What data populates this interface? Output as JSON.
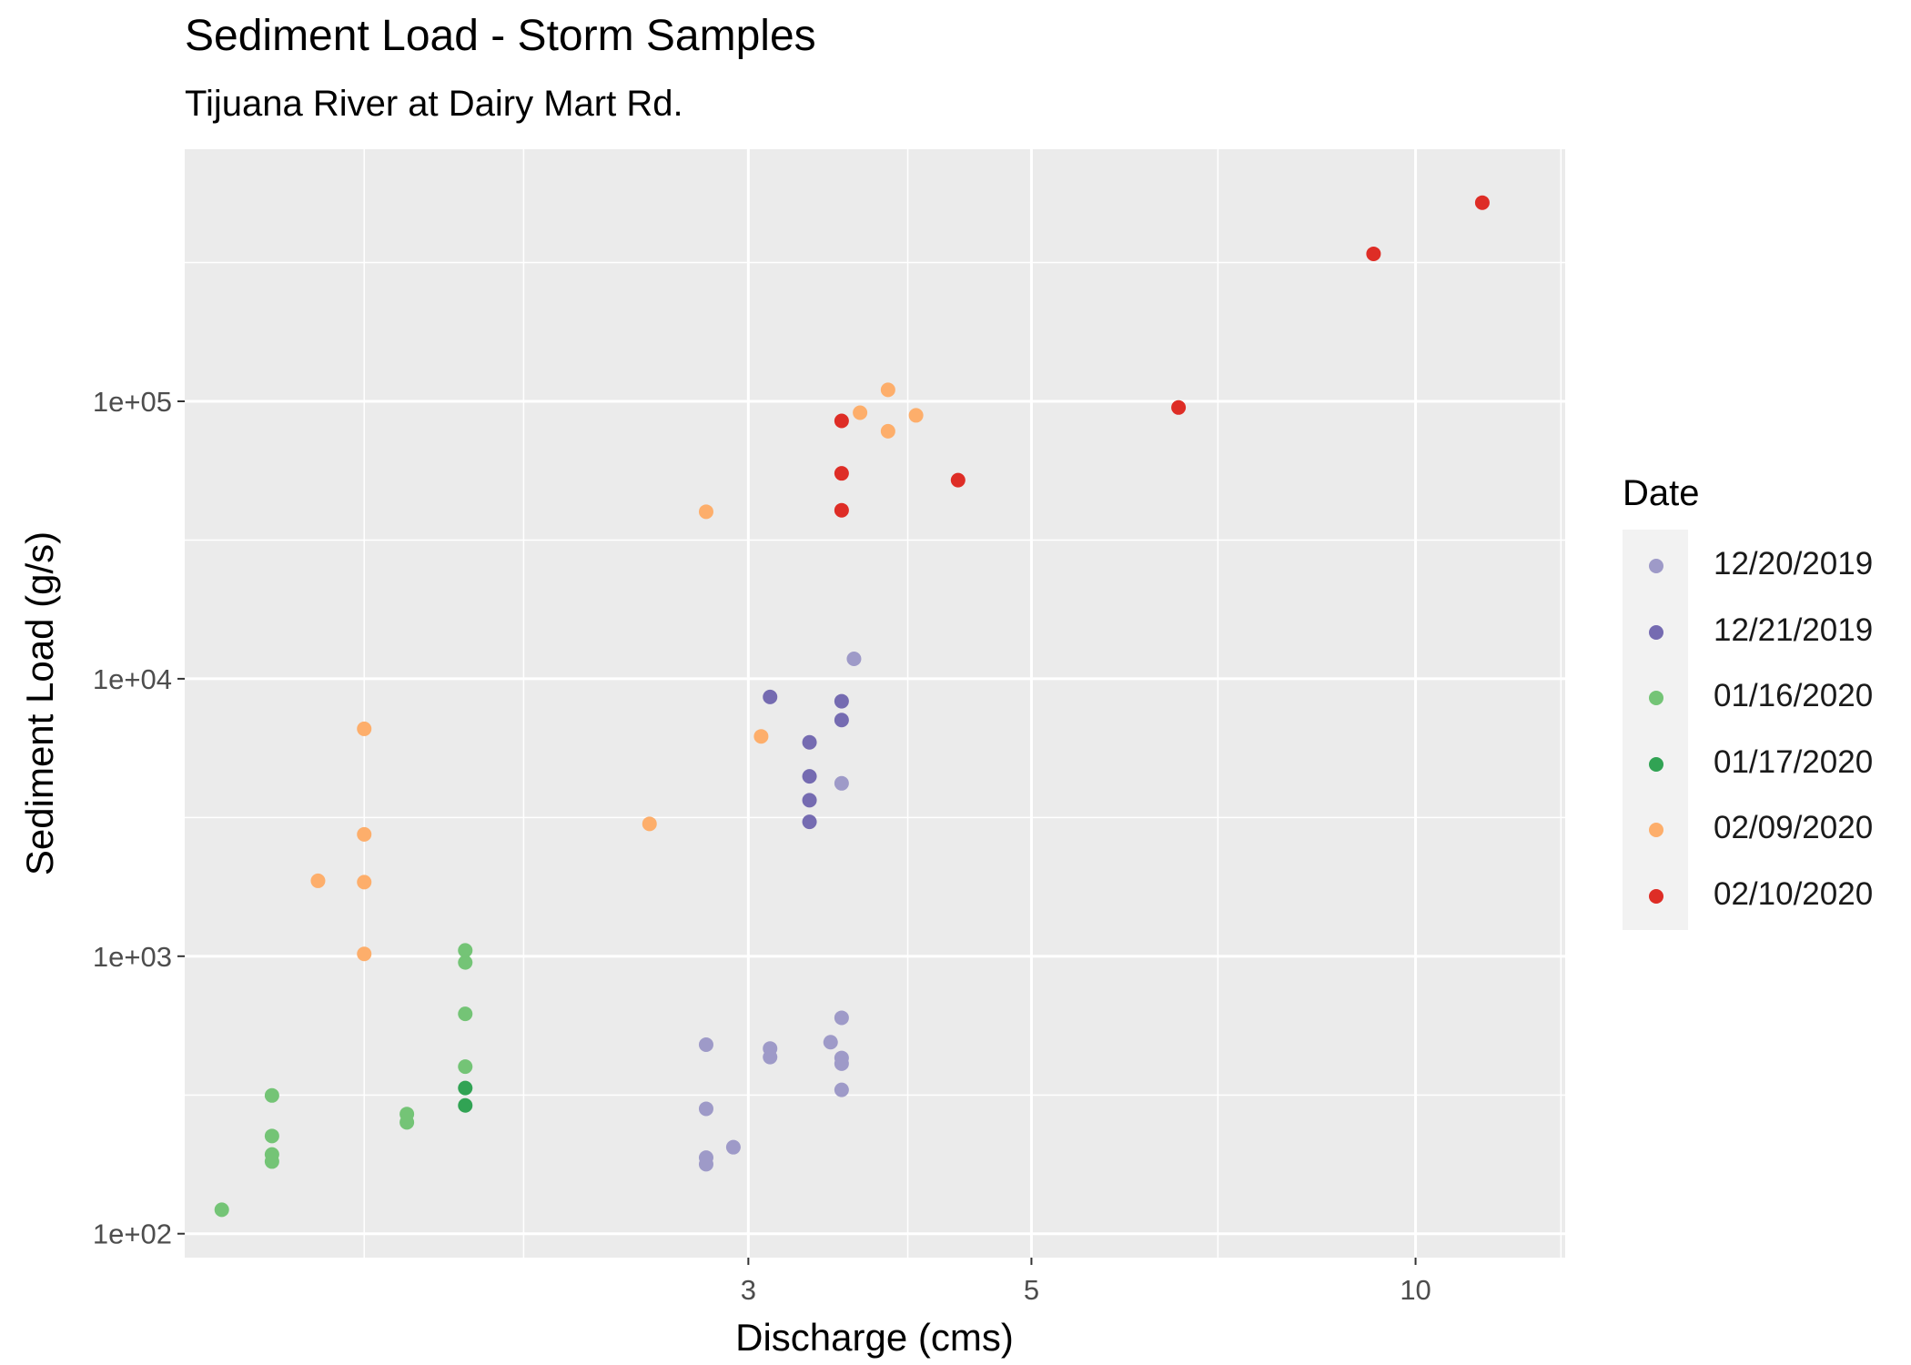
{
  "chart": {
    "title": "Sediment Load - Storm Samples",
    "subtitle": "Tijuana River at Dairy Mart Rd."
  },
  "legend": {
    "title": "Date",
    "items": [
      {
        "label": "12/20/2019",
        "color": "#9e9ac8"
      },
      {
        "label": "12/21/2019",
        "color": "#756bb1"
      },
      {
        "label": "01/16/2020",
        "color": "#74c476"
      },
      {
        "label": "01/17/2020",
        "color": "#31a354"
      },
      {
        "label": "02/09/2020",
        "color": "#fdae6b"
      },
      {
        "label": "02/10/2020",
        "color": "#de2d26"
      }
    ]
  },
  "chart_data": {
    "type": "scatter",
    "title": "Sediment Load - Storm Samples",
    "subtitle": "Tijuana River at Dairy Mart Rd.",
    "xlabel": "Discharge (cms)",
    "ylabel": "Sediment Load (g/s)",
    "x_scale": "log10",
    "y_scale": "log10",
    "xlim": [
      1.085,
      13.1
    ],
    "ylim": [
      82,
      810000
    ],
    "x_ticks": [
      {
        "value": 3,
        "label": "3"
      },
      {
        "value": 5,
        "label": "5"
      },
      {
        "value": 10,
        "label": "10"
      }
    ],
    "y_ticks": [
      {
        "value": 100,
        "label": "1e+02"
      },
      {
        "value": 1000,
        "label": "1e+03"
      },
      {
        "value": 10000,
        "label": "1e+04"
      },
      {
        "value": 100000,
        "label": "1e+05"
      }
    ],
    "x_minor_gridlines": [
      1.5,
      2,
      4,
      7,
      13
    ],
    "y_minor_gridlines": [
      316,
      3162,
      31623,
      316228
    ],
    "grid": true,
    "legend_position": "right",
    "legend_title": "Date",
    "series": [
      {
        "name": "12/20/2019",
        "color": "#9e9ac8",
        "points": [
          [
            2.78,
            480
          ],
          [
            2.78,
            282
          ],
          [
            2.78,
            188
          ],
          [
            2.78,
            178
          ],
          [
            2.92,
            205
          ],
          [
            3.12,
            465
          ],
          [
            3.12,
            433
          ],
          [
            3.48,
            490
          ],
          [
            3.55,
            600
          ],
          [
            3.55,
            430
          ],
          [
            3.55,
            410
          ],
          [
            3.55,
            330
          ],
          [
            3.55,
            4200
          ],
          [
            3.63,
            11800
          ]
        ]
      },
      {
        "name": "12/21/2019",
        "color": "#756bb1",
        "points": [
          [
            3.12,
            8600
          ],
          [
            3.35,
            5900
          ],
          [
            3.35,
            4450
          ],
          [
            3.35,
            3650
          ],
          [
            3.35,
            3050
          ],
          [
            3.55,
            8300
          ],
          [
            3.55,
            7100
          ]
        ]
      },
      {
        "name": "01/16/2020",
        "color": "#74c476",
        "points": [
          [
            1.16,
            122
          ],
          [
            1.27,
            315
          ],
          [
            1.27,
            225
          ],
          [
            1.27,
            193
          ],
          [
            1.27,
            182
          ],
          [
            1.62,
            270
          ],
          [
            1.62,
            252
          ],
          [
            1.8,
            1050
          ],
          [
            1.8,
            950
          ],
          [
            1.8,
            620
          ],
          [
            1.8,
            400
          ]
        ]
      },
      {
        "name": "01/17/2020",
        "color": "#31a354",
        "points": [
          [
            1.8,
            335
          ],
          [
            1.8,
            290
          ]
        ]
      },
      {
        "name": "02/09/2020",
        "color": "#fdae6b",
        "points": [
          [
            1.38,
            1870
          ],
          [
            1.5,
            6600
          ],
          [
            1.5,
            2750
          ],
          [
            1.5,
            1850
          ],
          [
            1.5,
            1020
          ],
          [
            2.51,
            3000
          ],
          [
            2.78,
            40000
          ],
          [
            3.07,
            6200
          ],
          [
            3.67,
            91000
          ],
          [
            3.86,
            110000
          ],
          [
            3.86,
            78000
          ],
          [
            4.06,
            89000
          ]
        ]
      },
      {
        "name": "02/10/2020",
        "color": "#de2d26",
        "points": [
          [
            3.55,
            85000
          ],
          [
            3.55,
            55000
          ],
          [
            3.55,
            40500
          ],
          [
            4.38,
            52000
          ],
          [
            6.52,
            95000
          ],
          [
            9.27,
            340000
          ],
          [
            11.28,
            520000
          ]
        ]
      }
    ]
  }
}
